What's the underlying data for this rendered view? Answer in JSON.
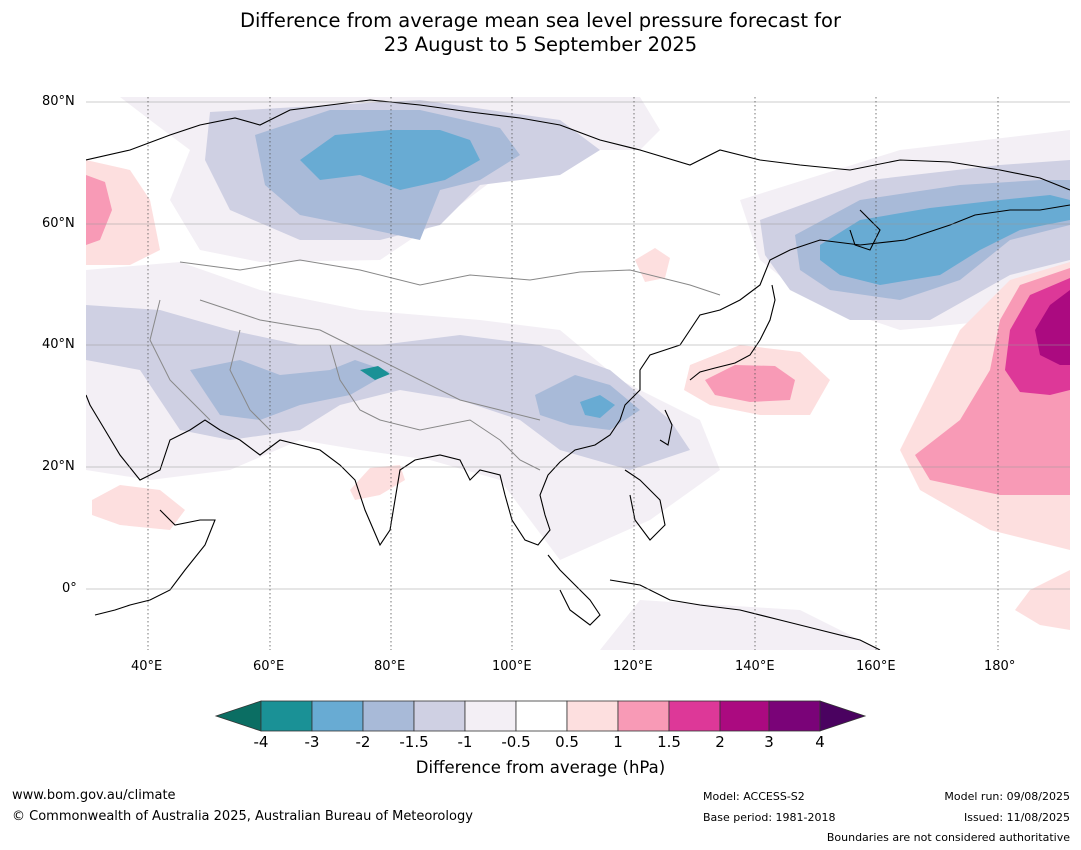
{
  "title": {
    "line1": "Difference from average mean sea level pressure forecast for",
    "line2": "23 August to 5 September 2025"
  },
  "map": {
    "lat_labels": [
      "80°N",
      "60°N",
      "40°N",
      "20°N",
      "0°"
    ],
    "lon_labels": [
      "40°E",
      "60°E",
      "80°E",
      "100°E",
      "120°E",
      "140°E",
      "160°E",
      "180°"
    ]
  },
  "colorbar": {
    "title": "Difference from average (hPa)",
    "ticks": [
      "-4",
      "-3",
      "-2",
      "-1.5",
      "-1",
      "-0.5",
      "0.5",
      "1",
      "1.5",
      "2",
      "3",
      "4"
    ],
    "colors": {
      "below_-4": "#0b6e63",
      "-4_-3": "#1a9196",
      "-3_-2": "#68abd3",
      "-2_-1.5": "#a8bad8",
      "-1.5_-1": "#cfd0e3",
      "-1_-0.5": "#f3eff5",
      "-0.5_0.5": "#ffffff",
      "0.5_1": "#fddfdf",
      "1_1.5": "#f89ab6",
      "1.5_2": "#dd3898",
      "2_3": "#ab0a80",
      "3_4": "#7a0378",
      "above_4": "#4a0260"
    }
  },
  "footer": {
    "website": "www.bom.gov.au/climate",
    "copyright": "© Commonwealth of Australia 2025, Australian Bureau of Meteorology",
    "model": "Model: ACCESS-S2",
    "base_period": "Base period: 1981-2018",
    "model_run": "Model run: 09/08/2025",
    "issued": "Issued: 11/08/2025",
    "disclaimer": "Boundaries are not considered authoritative"
  }
}
